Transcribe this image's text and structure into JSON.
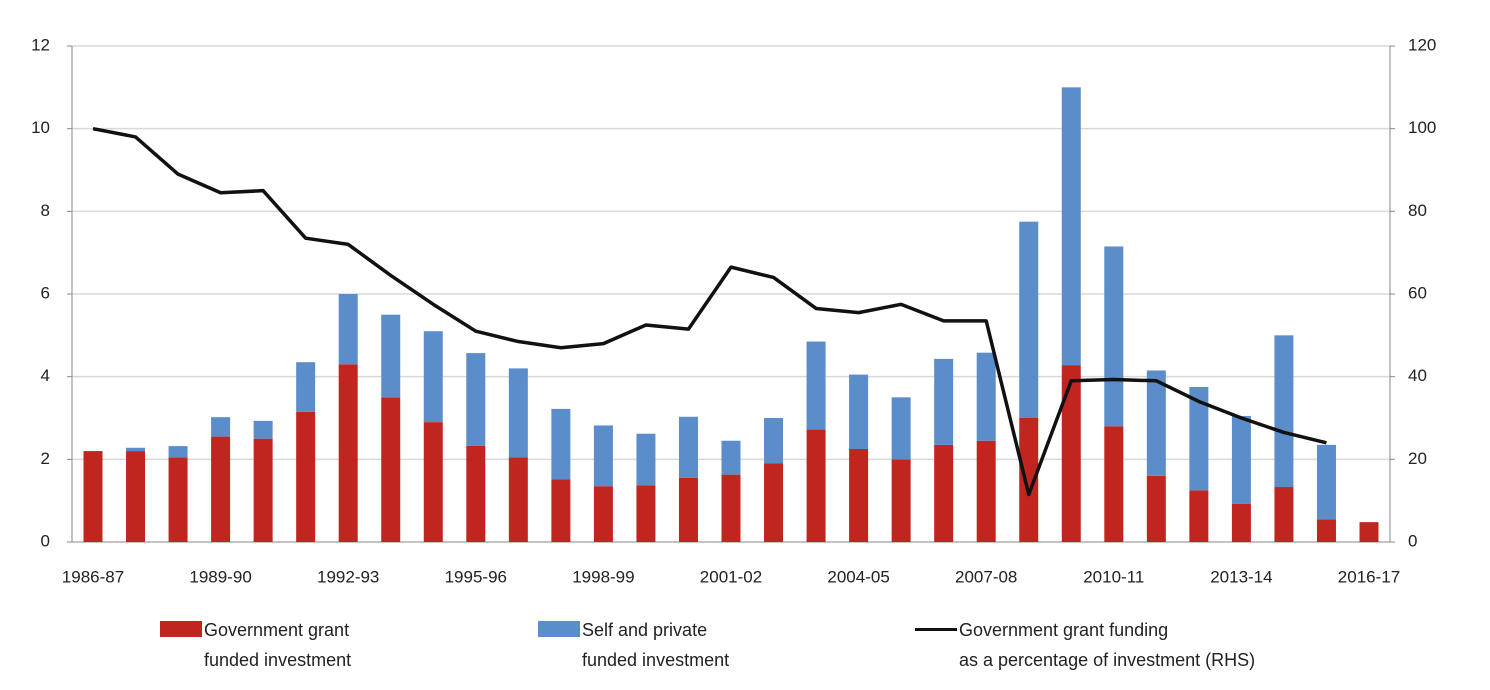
{
  "chart_data": {
    "type": "bar-line",
    "categories": [
      "1986-87",
      null,
      null,
      "1989-90",
      null,
      null,
      "1992-93",
      null,
      null,
      "1995-96",
      null,
      null,
      "1998-99",
      null,
      null,
      "2001-02",
      null,
      null,
      "2004-05",
      null,
      null,
      "2007-08",
      null,
      null,
      "2010-11",
      null,
      null,
      "2013-14",
      null,
      null,
      "2016-17"
    ],
    "series": [
      {
        "name": "Government grant\nfunded investment",
        "color": "#c0261f",
        "kind": "bar",
        "values": [
          2.2,
          2.2,
          2.05,
          2.55,
          2.5,
          3.15,
          4.3,
          3.5,
          2.9,
          2.33,
          2.05,
          1.52,
          1.35,
          1.37,
          1.55,
          1.63,
          1.9,
          2.72,
          2.25,
          2.0,
          2.35,
          2.45,
          3.0,
          4.27,
          2.8,
          1.6,
          1.25,
          0.92,
          1.33,
          0.55,
          0.48
        ]
      },
      {
        "name": "Self and private\nfunded investment",
        "color": "#5b8dcb",
        "kind": "bar",
        "values": [
          0,
          0.08,
          0.27,
          0.47,
          0.43,
          1.2,
          1.7,
          2.0,
          2.2,
          2.24,
          2.15,
          1.7,
          1.47,
          1.25,
          1.48,
          0.82,
          1.1,
          2.13,
          1.8,
          1.5,
          2.08,
          2.13,
          4.75,
          6.73,
          4.35,
          2.55,
          2.5,
          2.13,
          3.67,
          1.8,
          null
        ]
      },
      {
        "name": "Government grant funding\nas a percentage of investment (RHS)",
        "color": "#111111",
        "kind": "line",
        "axis": "y2",
        "values": [
          100,
          98,
          89,
          84.5,
          85,
          73.5,
          72,
          64.5,
          57.5,
          51,
          48.5,
          47,
          48,
          52.5,
          51.5,
          66.5,
          64,
          56.5,
          55.5,
          57.5,
          53.5,
          53.5,
          11.5,
          39,
          39.3,
          39,
          34,
          30,
          26.5,
          24,
          null
        ]
      }
    ],
    "ylim": [
      0,
      12
    ],
    "yticks": [
      0,
      2,
      4,
      6,
      8,
      10,
      12
    ],
    "y2lim": [
      0,
      120
    ],
    "y2ticks": [
      0,
      20,
      40,
      60,
      80,
      100,
      120
    ],
    "grid": true
  }
}
